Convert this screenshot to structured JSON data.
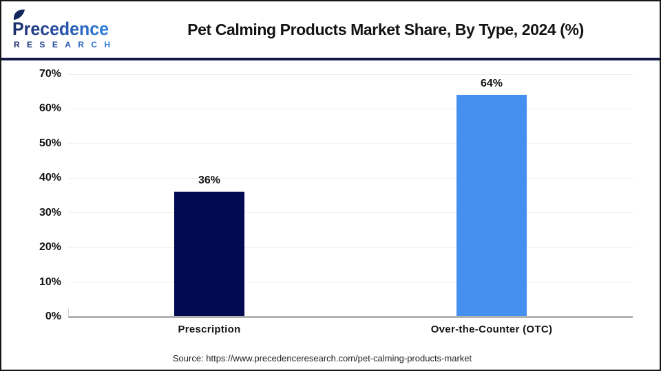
{
  "header": {
    "logo": {
      "brand": "Precedence",
      "sub": "RESEARCH",
      "color_dark": "#1b2e66",
      "color_blue": "#2f80e0"
    },
    "title": "Pet Calming Products Market Share, By Type, 2024 (%)"
  },
  "chart_data": {
    "type": "bar",
    "title": "Pet Calming Products Market Share, By Type, 2024 (%)",
    "categories": [
      "Prescription",
      "Over-the-Counter (OTC)"
    ],
    "values": [
      36,
      64
    ],
    "value_labels": [
      "36%",
      "64%"
    ],
    "bar_colors": [
      "#020a52",
      "#4590ee"
    ],
    "xlabel": "",
    "ylabel": "",
    "ylim": [
      0,
      70
    ],
    "ytick_step": 10,
    "ytick_labels": [
      "0%",
      "10%",
      "20%",
      "30%",
      "40%",
      "50%",
      "60%",
      "70%"
    ],
    "grid": true,
    "gridline_color": "#f1efec",
    "axis_color": "#b2b2b2",
    "legend_position": "none",
    "background": "#ffffff"
  },
  "footer": {
    "source": "Source: https://www.precedenceresearch.com/pet-calming-products-market"
  },
  "colors": {
    "separator": "#141a47",
    "frame_border": "#161616",
    "title_text": "#131313"
  }
}
